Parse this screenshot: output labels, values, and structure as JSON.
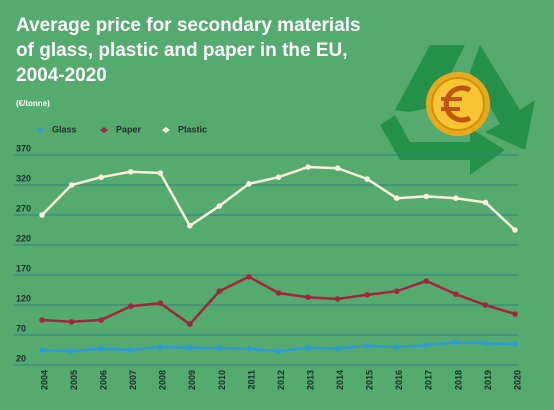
{
  "chart_data": {
    "type": "line",
    "title": [
      "Average price for secondary materials",
      "of glass, plastic and paper in the EU,",
      "2004-2020"
    ],
    "subtitle": "(€/tonne)",
    "categories": [
      "2004",
      "2005",
      "2006",
      "2007",
      "2008",
      "2009",
      "2010",
      "2011",
      "2012",
      "2013",
      "2014",
      "2015",
      "2016",
      "2017",
      "2018",
      "2019",
      "2020"
    ],
    "series": [
      {
        "name": "Glass",
        "color": "#2f9bd6",
        "values": [
          45,
          43,
          47,
          45,
          50,
          49,
          48,
          47,
          43,
          49,
          47,
          52,
          50,
          53,
          58,
          56,
          55
        ]
      },
      {
        "name": "Paper",
        "color": "#a3243b",
        "values": [
          95,
          92,
          95,
          118,
          123,
          88,
          143,
          167,
          140,
          133,
          130,
          137,
          143,
          160,
          138,
          120,
          105
        ]
      },
      {
        "name": "Plastic",
        "color": "#fbeede",
        "values": [
          270,
          320,
          333,
          342,
          340,
          252,
          285,
          322,
          333,
          350,
          348,
          330,
          298,
          301,
          298,
          291,
          245
        ]
      }
    ],
    "ylim": [
      20,
      370
    ],
    "yticks": [
      20,
      70,
      120,
      170,
      220,
      270,
      320,
      370
    ],
    "grid": true
  }
}
